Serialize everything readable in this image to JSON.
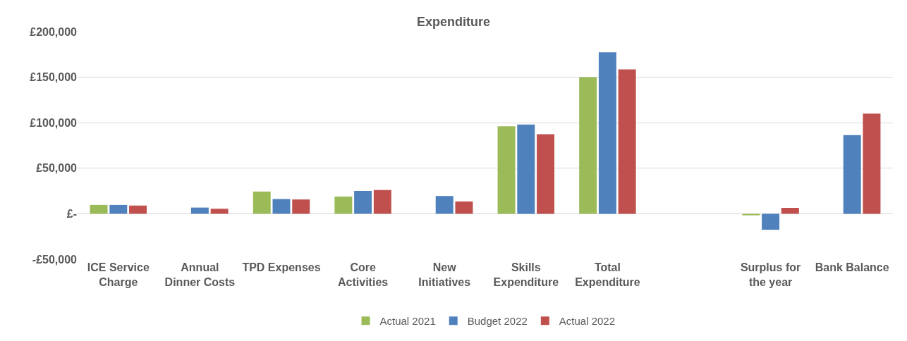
{
  "chart_data": {
    "type": "bar",
    "title": "Expenditure",
    "categories": [
      "ICE Service Charge",
      "Annual Dinner Costs",
      "TPD Expenses",
      "Core Activities",
      "New Initiatives",
      "Skills Expenditure",
      "Total Expenditure",
      null,
      "Surplus for the year",
      "Bank Balance"
    ],
    "series": [
      {
        "name": "Actual 2021",
        "color": "#9bbb59",
        "values": [
          9700,
          null,
          24400,
          18900,
          null,
          96000,
          150000,
          null,
          -1700,
          null
        ]
      },
      {
        "name": "Budget 2022",
        "color": "#4f81bd",
        "values": [
          9700,
          6800,
          16200,
          25100,
          19500,
          98000,
          177400,
          null,
          -17600,
          86500
        ]
      },
      {
        "name": "Actual 2022",
        "color": "#c0504d",
        "values": [
          9000,
          5500,
          15700,
          26100,
          13500,
          87400,
          158600,
          null,
          6500,
          110100
        ]
      }
    ],
    "ylim": [
      -50000,
      200000
    ],
    "yticks": [
      {
        "value": -50000,
        "label": "-£50,000"
      },
      {
        "value": 0,
        "label": "£-"
      },
      {
        "value": 50000,
        "label": "£50,000"
      },
      {
        "value": 100000,
        "label": "£100,000"
      },
      {
        "value": 150000,
        "label": "£150,000"
      },
      {
        "value": 200000,
        "label": "£200,000"
      }
    ],
    "grid": "y",
    "legend": "bottom"
  }
}
